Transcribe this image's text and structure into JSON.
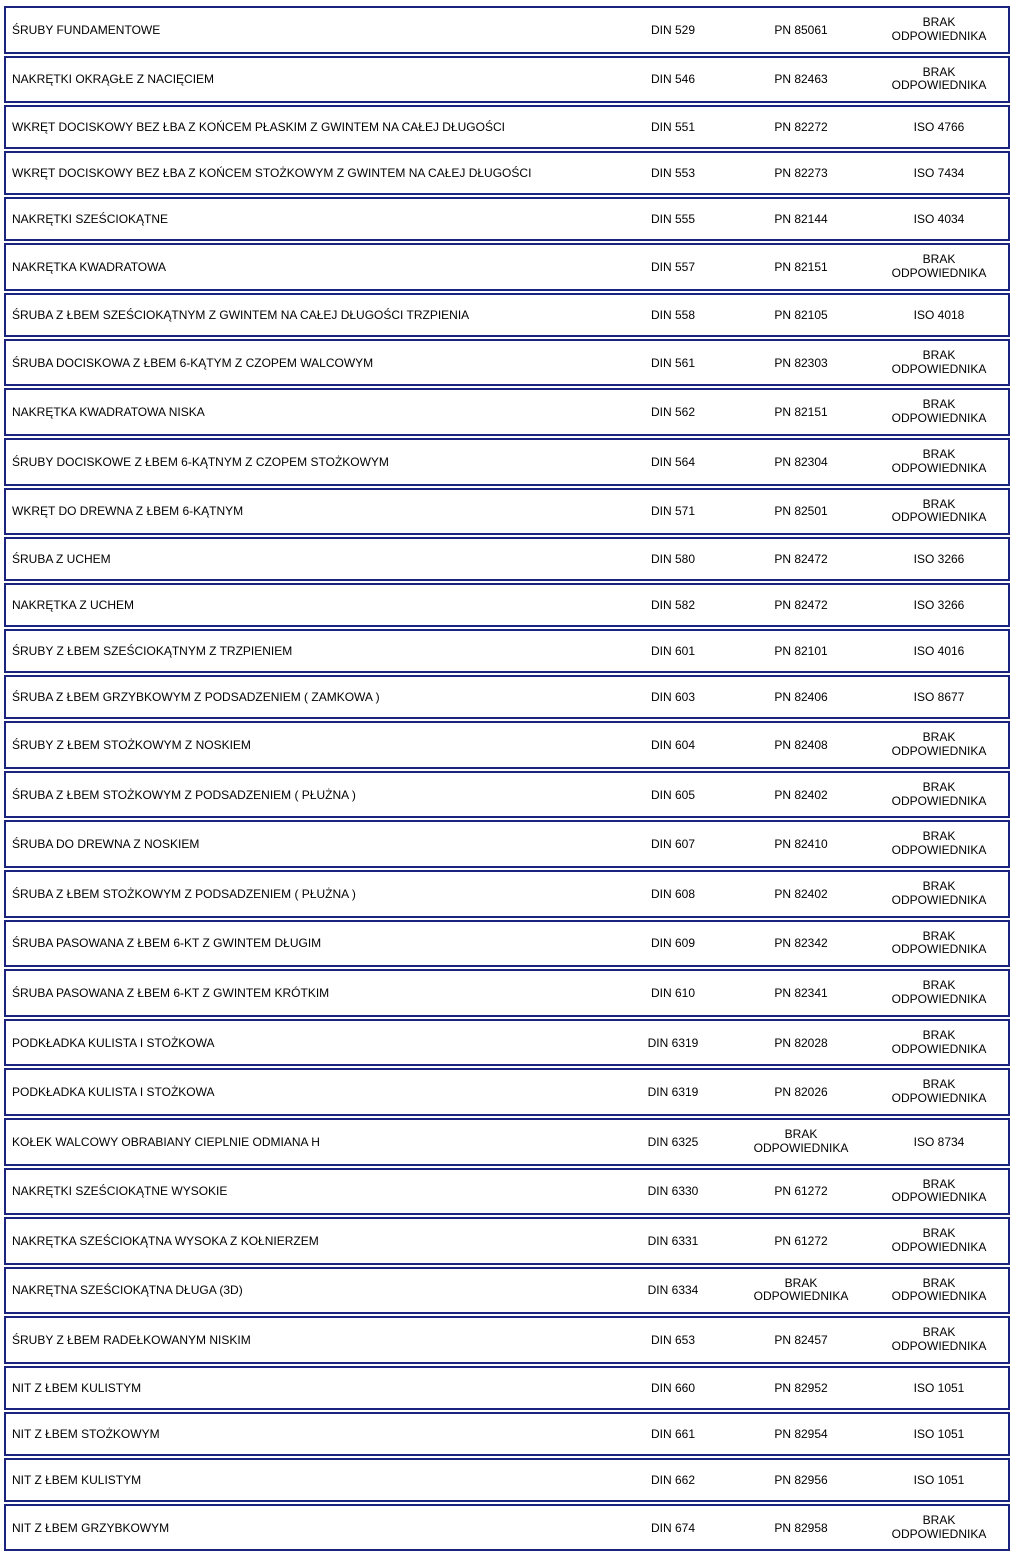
{
  "border_color": "#1a237e",
  "background_color": "#ffffff",
  "text_color": "#000000",
  "font_size": 12,
  "brak_text": "BRAK\nODPOWIEDNIKA",
  "rows": [
    {
      "name": "ŚRUBY FUNDAMENTOWE",
      "din": "DIN 529",
      "pn": "PN 85061",
      "iso": "BRAK\nODPOWIEDNIKA"
    },
    {
      "name": "NAKRĘTKI OKRĄGŁE Z NACIĘCIEM",
      "din": "DIN 546",
      "pn": "PN 82463",
      "iso": "BRAK\nODPOWIEDNIKA"
    },
    {
      "name": "WKRĘT DOCISKOWY BEZ ŁBA Z KOŃCEM PŁASKIM Z GWINTEM NA CAŁEJ DŁUGOŚCI",
      "din": "DIN 551",
      "pn": "PN 82272",
      "iso": "ISO 4766"
    },
    {
      "name": "WKRĘT DOCISKOWY BEZ ŁBA Z KOŃCEM STOŻKOWYM Z GWINTEM NA CAŁEJ DŁUGOŚCI",
      "din": "DIN 553",
      "pn": "PN 82273",
      "iso": "ISO 7434"
    },
    {
      "name": "NAKRĘTKI SZEŚCIOKĄTNE",
      "din": "DIN 555",
      "pn": "PN 82144",
      "iso": "ISO 4034"
    },
    {
      "name": "NAKRĘTKA KWADRATOWA",
      "din": "DIN 557",
      "pn": "PN 82151",
      "iso": "BRAK\nODPOWIEDNIKA"
    },
    {
      "name": "ŚRUBA Z ŁBEM SZEŚCIOKĄTNYM Z GWINTEM NA CAŁEJ DŁUGOŚCI TRZPIENIA",
      "din": "DIN 558",
      "pn": "PN 82105",
      "iso": "ISO 4018"
    },
    {
      "name": "ŚRUBA DOCISKOWA Z ŁBEM 6-KĄTYM Z CZOPEM WALCOWYM",
      "din": "DIN 561",
      "pn": "PN 82303",
      "iso": "BRAK\nODPOWIEDNIKA"
    },
    {
      "name": "NAKRĘTKA KWADRATOWA NISKA",
      "din": "DIN 562",
      "pn": "PN 82151",
      "iso": "BRAK\nODPOWIEDNIKA"
    },
    {
      "name": "ŚRUBY DOCISKOWE Z ŁBEM 6-KĄTNYM Z CZOPEM STOŻKOWYM",
      "din": "DIN 564",
      "pn": "PN 82304",
      "iso": "BRAK\nODPOWIEDNIKA"
    },
    {
      "name": "WKRĘT DO DREWNA Z ŁBEM 6-KĄTNYM",
      "din": "DIN 571",
      "pn": "PN 82501",
      "iso": "BRAK\nODPOWIEDNIKA"
    },
    {
      "name": "ŚRUBA Z UCHEM",
      "din": "DIN 580",
      "pn": "PN 82472",
      "iso": "ISO 3266"
    },
    {
      "name": "NAKRĘTKA Z UCHEM",
      "din": "DIN 582",
      "pn": "PN 82472",
      "iso": "ISO 3266"
    },
    {
      "name": "ŚRUBY Z ŁBEM SZEŚCIOKĄTNYM Z TRZPIENIEM",
      "din": "DIN 601",
      "pn": "PN 82101",
      "iso": "ISO 4016"
    },
    {
      "name": "ŚRUBA Z ŁBEM GRZYBKOWYM Z PODSADZENIEM ( ZAMKOWA )",
      "din": "DIN 603",
      "pn": "PN 82406",
      "iso": "ISO 8677"
    },
    {
      "name": "ŚRUBY Z ŁBEM STOŻKOWYM Z NOSKIEM",
      "din": "DIN 604",
      "pn": "PN 82408",
      "iso": "BRAK\nODPOWIEDNIKA"
    },
    {
      "name": "ŚRUBA Z ŁBEM STOŻKOWYM Z PODSADZENIEM ( PŁUŻNA )",
      "din": "DIN 605",
      "pn": "PN 82402",
      "iso": "BRAK\nODPOWIEDNIKA"
    },
    {
      "name": "ŚRUBA DO DREWNA Z NOSKIEM",
      "din": "DIN 607",
      "pn": "PN 82410",
      "iso": "BRAK\nODPOWIEDNIKA"
    },
    {
      "name": "ŚRUBA Z ŁBEM STOŻKOWYM Z PODSADZENIEM ( PŁUŻNA )",
      "din": "DIN 608",
      "pn": "PN 82402",
      "iso": "BRAK\nODPOWIEDNIKA"
    },
    {
      "name": "ŚRUBA PASOWANA Z ŁBEM 6-KT Z GWINTEM DŁUGIM",
      "din": "DIN 609",
      "pn": "PN 82342",
      "iso": "BRAK\nODPOWIEDNIKA"
    },
    {
      "name": "ŚRUBA PASOWANA Z ŁBEM 6-KT Z GWINTEM KRÓTKIM",
      "din": "DIN 610",
      "pn": "PN 82341",
      "iso": "BRAK\nODPOWIEDNIKA"
    },
    {
      "name": "PODKŁADKA KULISTA I STOŻKOWA",
      "din": "DIN 6319",
      "pn": "PN 82028",
      "iso": "BRAK\nODPOWIEDNIKA"
    },
    {
      "name": "PODKŁADKA KULISTA I STOŻKOWA",
      "din": "DIN 6319",
      "pn": "PN 82026",
      "iso": "BRAK\nODPOWIEDNIKA"
    },
    {
      "name": "KOŁEK WALCOWY OBRABIANY CIEPLNIE ODMIANA H",
      "din": "DIN 6325",
      "pn": "BRAK\nODPOWIEDNIKA",
      "iso": "ISO 8734"
    },
    {
      "name": "NAKRĘTKI SZEŚCIOKĄTNE WYSOKIE",
      "din": "DIN 6330",
      "pn": "PN 61272",
      "iso": "BRAK\nODPOWIEDNIKA"
    },
    {
      "name": "NAKRĘTKA SZEŚCIOKĄTNA WYSOKA Z KOŁNIERZEM",
      "din": "DIN 6331",
      "pn": "PN 61272",
      "iso": "BRAK\nODPOWIEDNIKA"
    },
    {
      "name": "NAKRĘTNA SZEŚCIOKĄTNA DŁUGA (3D)",
      "din": "DIN 6334",
      "pn": "BRAK\nODPOWIEDNIKA",
      "iso": "BRAK\nODPOWIEDNIKA"
    },
    {
      "name": "ŚRUBY Z ŁBEM RADEŁKOWANYM NISKIM",
      "din": "DIN 653",
      "pn": "PN 82457",
      "iso": "BRAK\nODPOWIEDNIKA"
    },
    {
      "name": "NIT Z ŁBEM KULISTYM",
      "din": "DIN 660",
      "pn": "PN 82952",
      "iso": "ISO 1051"
    },
    {
      "name": "NIT Z ŁBEM STOŻKOWYM",
      "din": "DIN 661",
      "pn": "PN 82954",
      "iso": "ISO 1051"
    },
    {
      "name": "NIT Z ŁBEM KULISTYM",
      "din": "DIN 662",
      "pn": "PN 82956",
      "iso": "ISO 1051"
    },
    {
      "name": "NIT Z ŁBEM GRZYBKOWYM",
      "din": "DIN 674",
      "pn": "PN 82958",
      "iso": "BRAK\nODPOWIEDNIKA"
    }
  ]
}
